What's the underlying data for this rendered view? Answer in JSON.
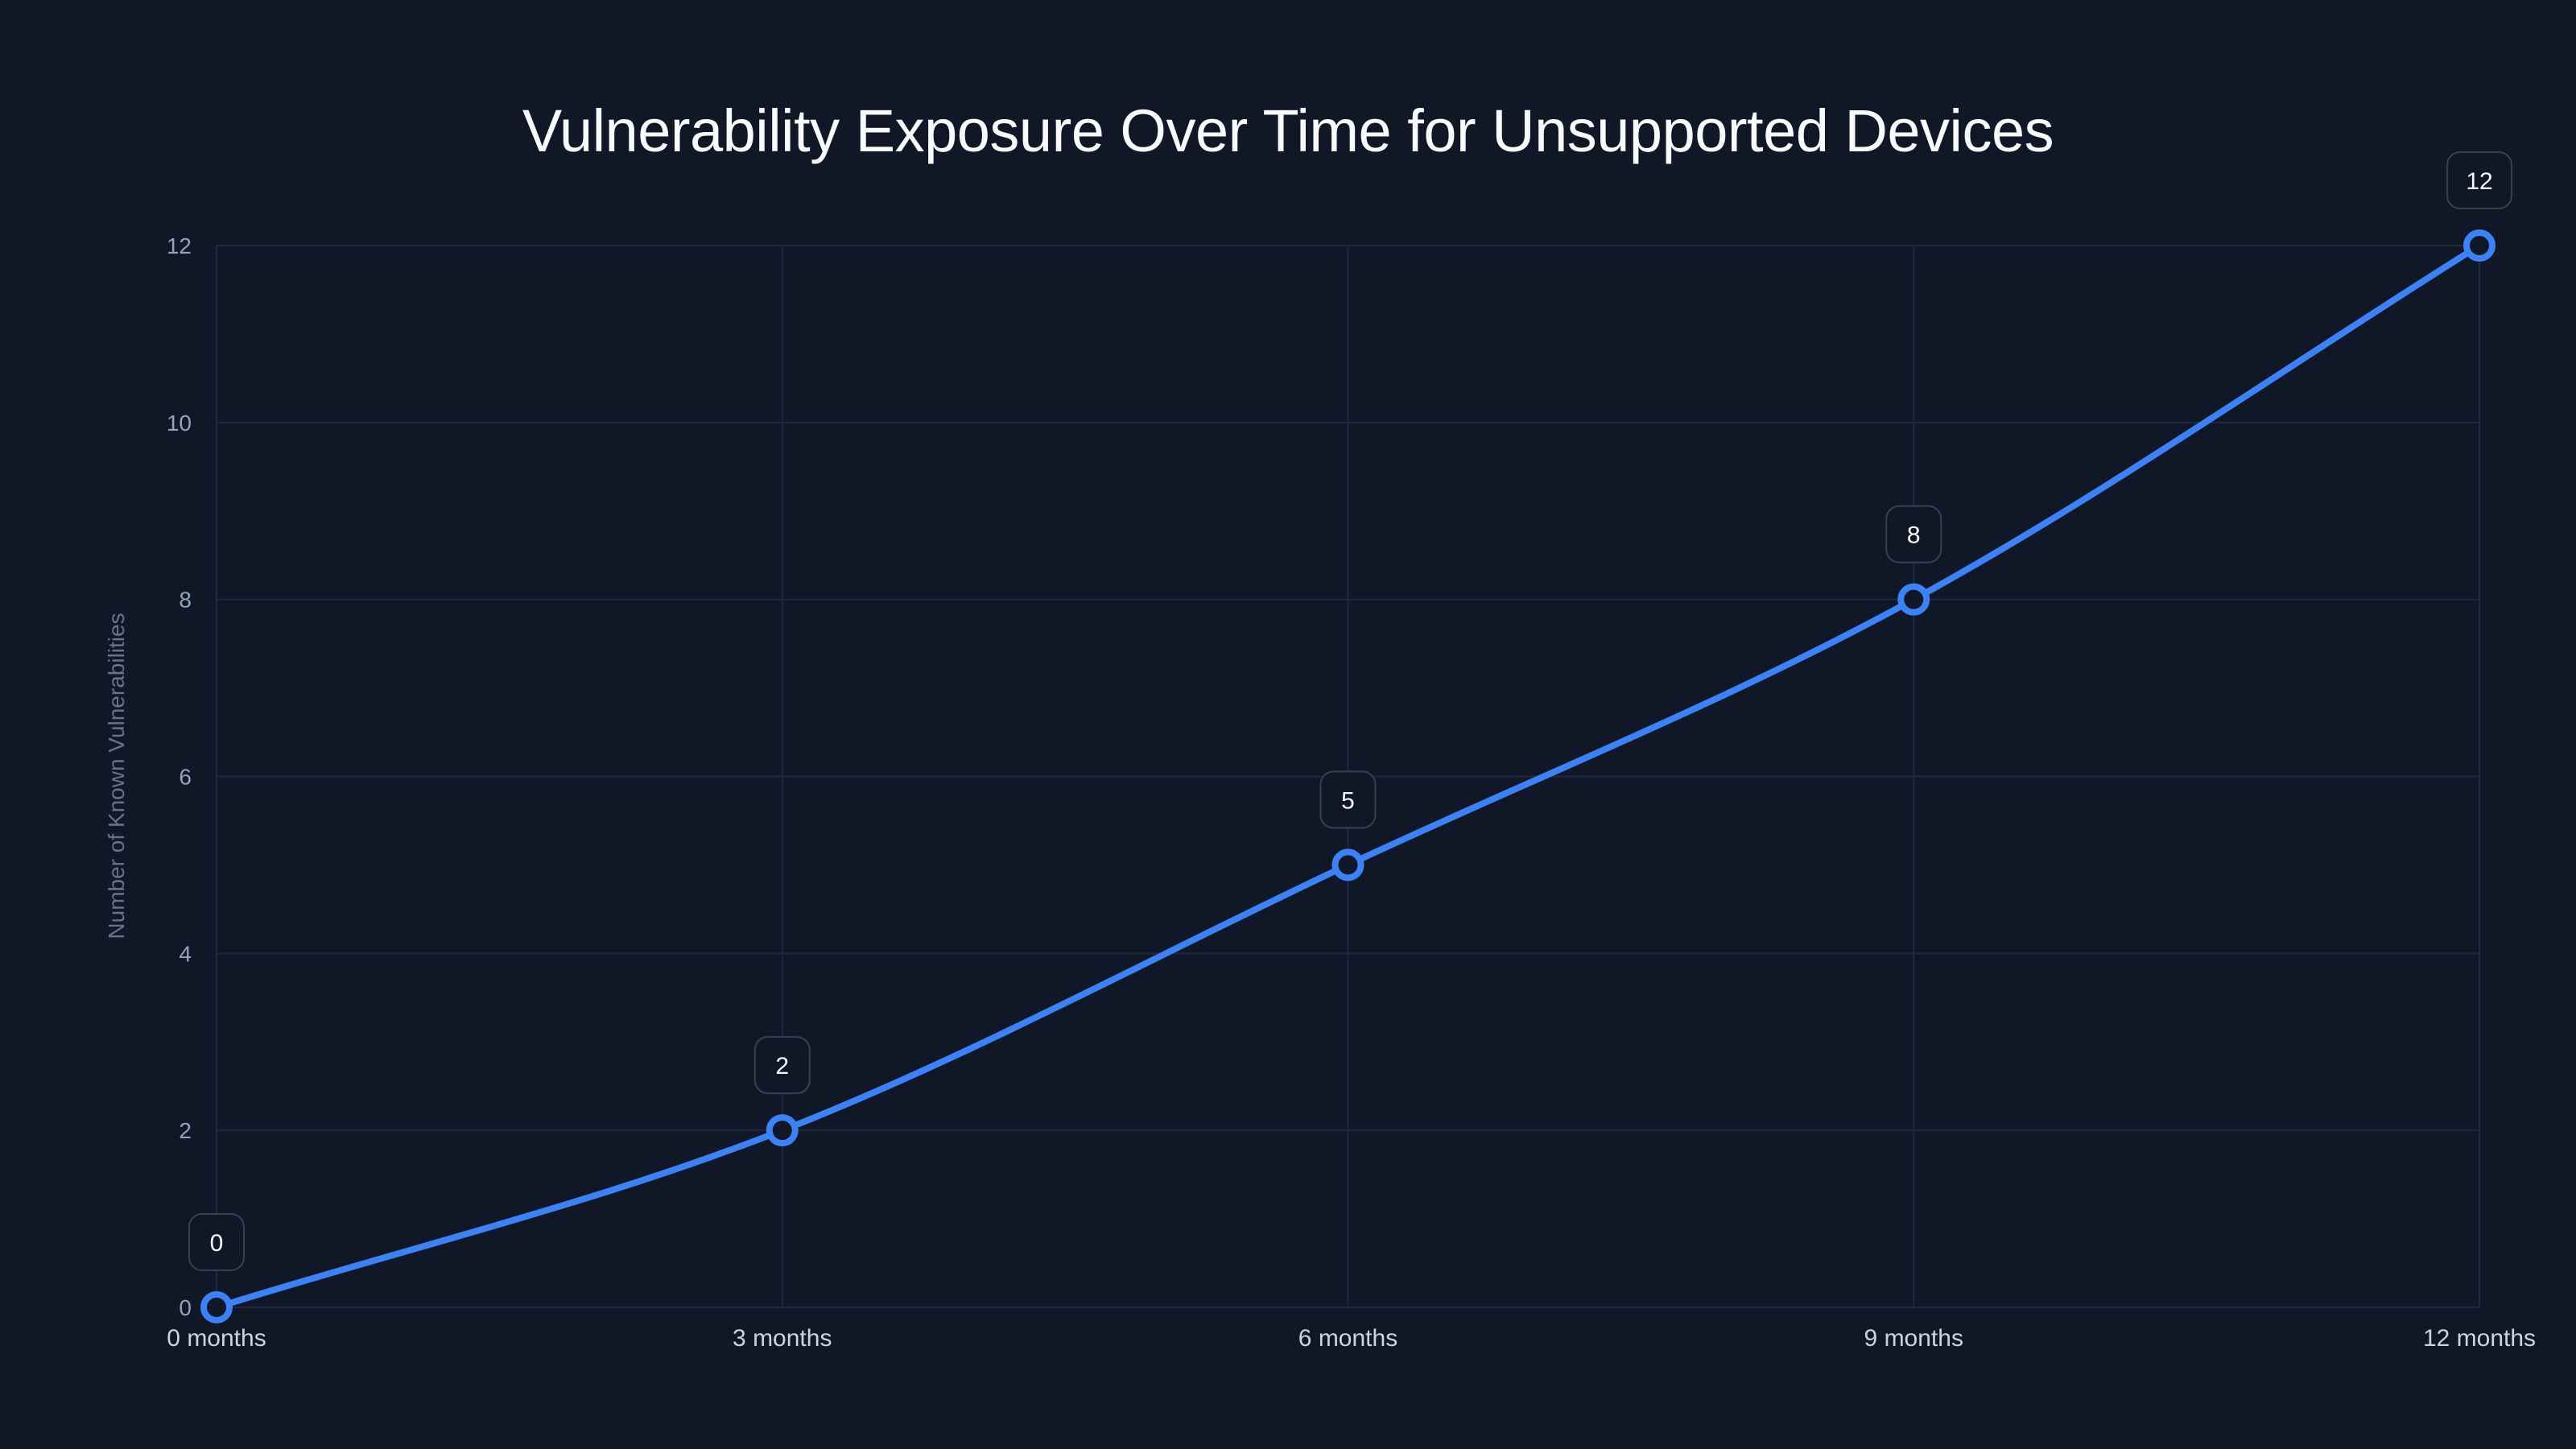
{
  "colors": {
    "background": "#101828",
    "grid": "#1e293b",
    "line": "#3b82f6",
    "title": "#f8fafc",
    "tick": "#94a3b8",
    "xtick": "#cbd5e1",
    "label_border": "#374151"
  },
  "chart_data": {
    "type": "line",
    "title": "Vulnerability Exposure Over Time for Unsupported Devices",
    "xlabel": "",
    "ylabel": "Number of Known Vulnerabilities",
    "categories": [
      "0 months",
      "3 months",
      "6 months",
      "9 months",
      "12 months"
    ],
    "x": [
      0,
      3,
      6,
      9,
      12
    ],
    "series": [
      {
        "name": "Known Vulnerabilities",
        "values": [
          0,
          2,
          5,
          8,
          12
        ]
      }
    ],
    "data_labels": [
      "0",
      "2",
      "5",
      "8",
      "12"
    ],
    "yticks": [
      0,
      2,
      4,
      6,
      8,
      10,
      12
    ],
    "ylim": [
      0,
      12
    ],
    "xlim": [
      0,
      12
    ],
    "grid": true,
    "legend": "none",
    "curve": "smooth"
  }
}
